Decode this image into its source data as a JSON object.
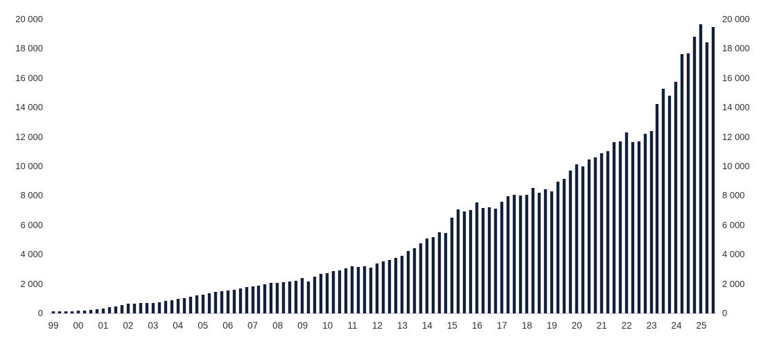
{
  "chart_data": {
    "type": "bar",
    "ylim": [
      0,
      20000
    ],
    "y_ticks": [
      {
        "value": 0,
        "label": "0"
      },
      {
        "value": 2000,
        "label": "2 000"
      },
      {
        "value": 4000,
        "label": "4 000"
      },
      {
        "value": 6000,
        "label": "6 000"
      },
      {
        "value": 8000,
        "label": "8 000"
      },
      {
        "value": 10000,
        "label": "10 000"
      },
      {
        "value": 12000,
        "label": "12 000"
      },
      {
        "value": 14000,
        "label": "14 000"
      },
      {
        "value": 16000,
        "label": "16 000"
      },
      {
        "value": 18000,
        "label": "18 000"
      },
      {
        "value": 20000,
        "label": "20 000"
      }
    ],
    "x_year_labels": [
      "99",
      "00",
      "01",
      "02",
      "03",
      "04",
      "05",
      "06",
      "07",
      "08",
      "09",
      "10",
      "11",
      "12",
      "13",
      "14",
      "15",
      "16",
      "17",
      "18",
      "19",
      "20",
      "21",
      "22",
      "23",
      "24",
      "25"
    ],
    "bars_per_year": 4,
    "bars_in_last_year": 3,
    "frequency": "quarterly",
    "values": [
      130,
      140,
      150,
      155,
      170,
      205,
      250,
      300,
      345,
      410,
      490,
      565,
      650,
      675,
      690,
      705,
      720,
      760,
      830,
      900,
      980,
      1060,
      1130,
      1210,
      1290,
      1380,
      1440,
      1520,
      1550,
      1620,
      1680,
      1780,
      1830,
      1890,
      1980,
      2060,
      2080,
      2110,
      2160,
      2220,
      2400,
      2170,
      2500,
      2670,
      2740,
      2890,
      2930,
      3050,
      3190,
      3160,
      3210,
      3110,
      3400,
      3550,
      3630,
      3790,
      3900,
      4260,
      4420,
      4780,
      5100,
      5170,
      5530,
      5490,
      6510,
      7090,
      6950,
      7040,
      7560,
      7170,
      7230,
      7140,
      7590,
      7960,
      8070,
      8000,
      8050,
      8560,
      8200,
      8460,
      8280,
      8980,
      9140,
      9720,
      10130,
      10000,
      10470,
      10600,
      10910,
      11030,
      11650,
      11690,
      12330,
      11650,
      11690,
      12230,
      12420,
      14250,
      15270,
      14800,
      15740,
      17630,
      17670,
      18810,
      19670,
      18460,
      19480
    ],
    "legend": [],
    "grid": "off",
    "y_axis_sides": [
      "left",
      "right"
    ],
    "bar_color": "#121f3d",
    "axis_line_color": "#dadada",
    "tick_text_color": "#2f2f2f",
    "background_color": "#ffffff"
  }
}
